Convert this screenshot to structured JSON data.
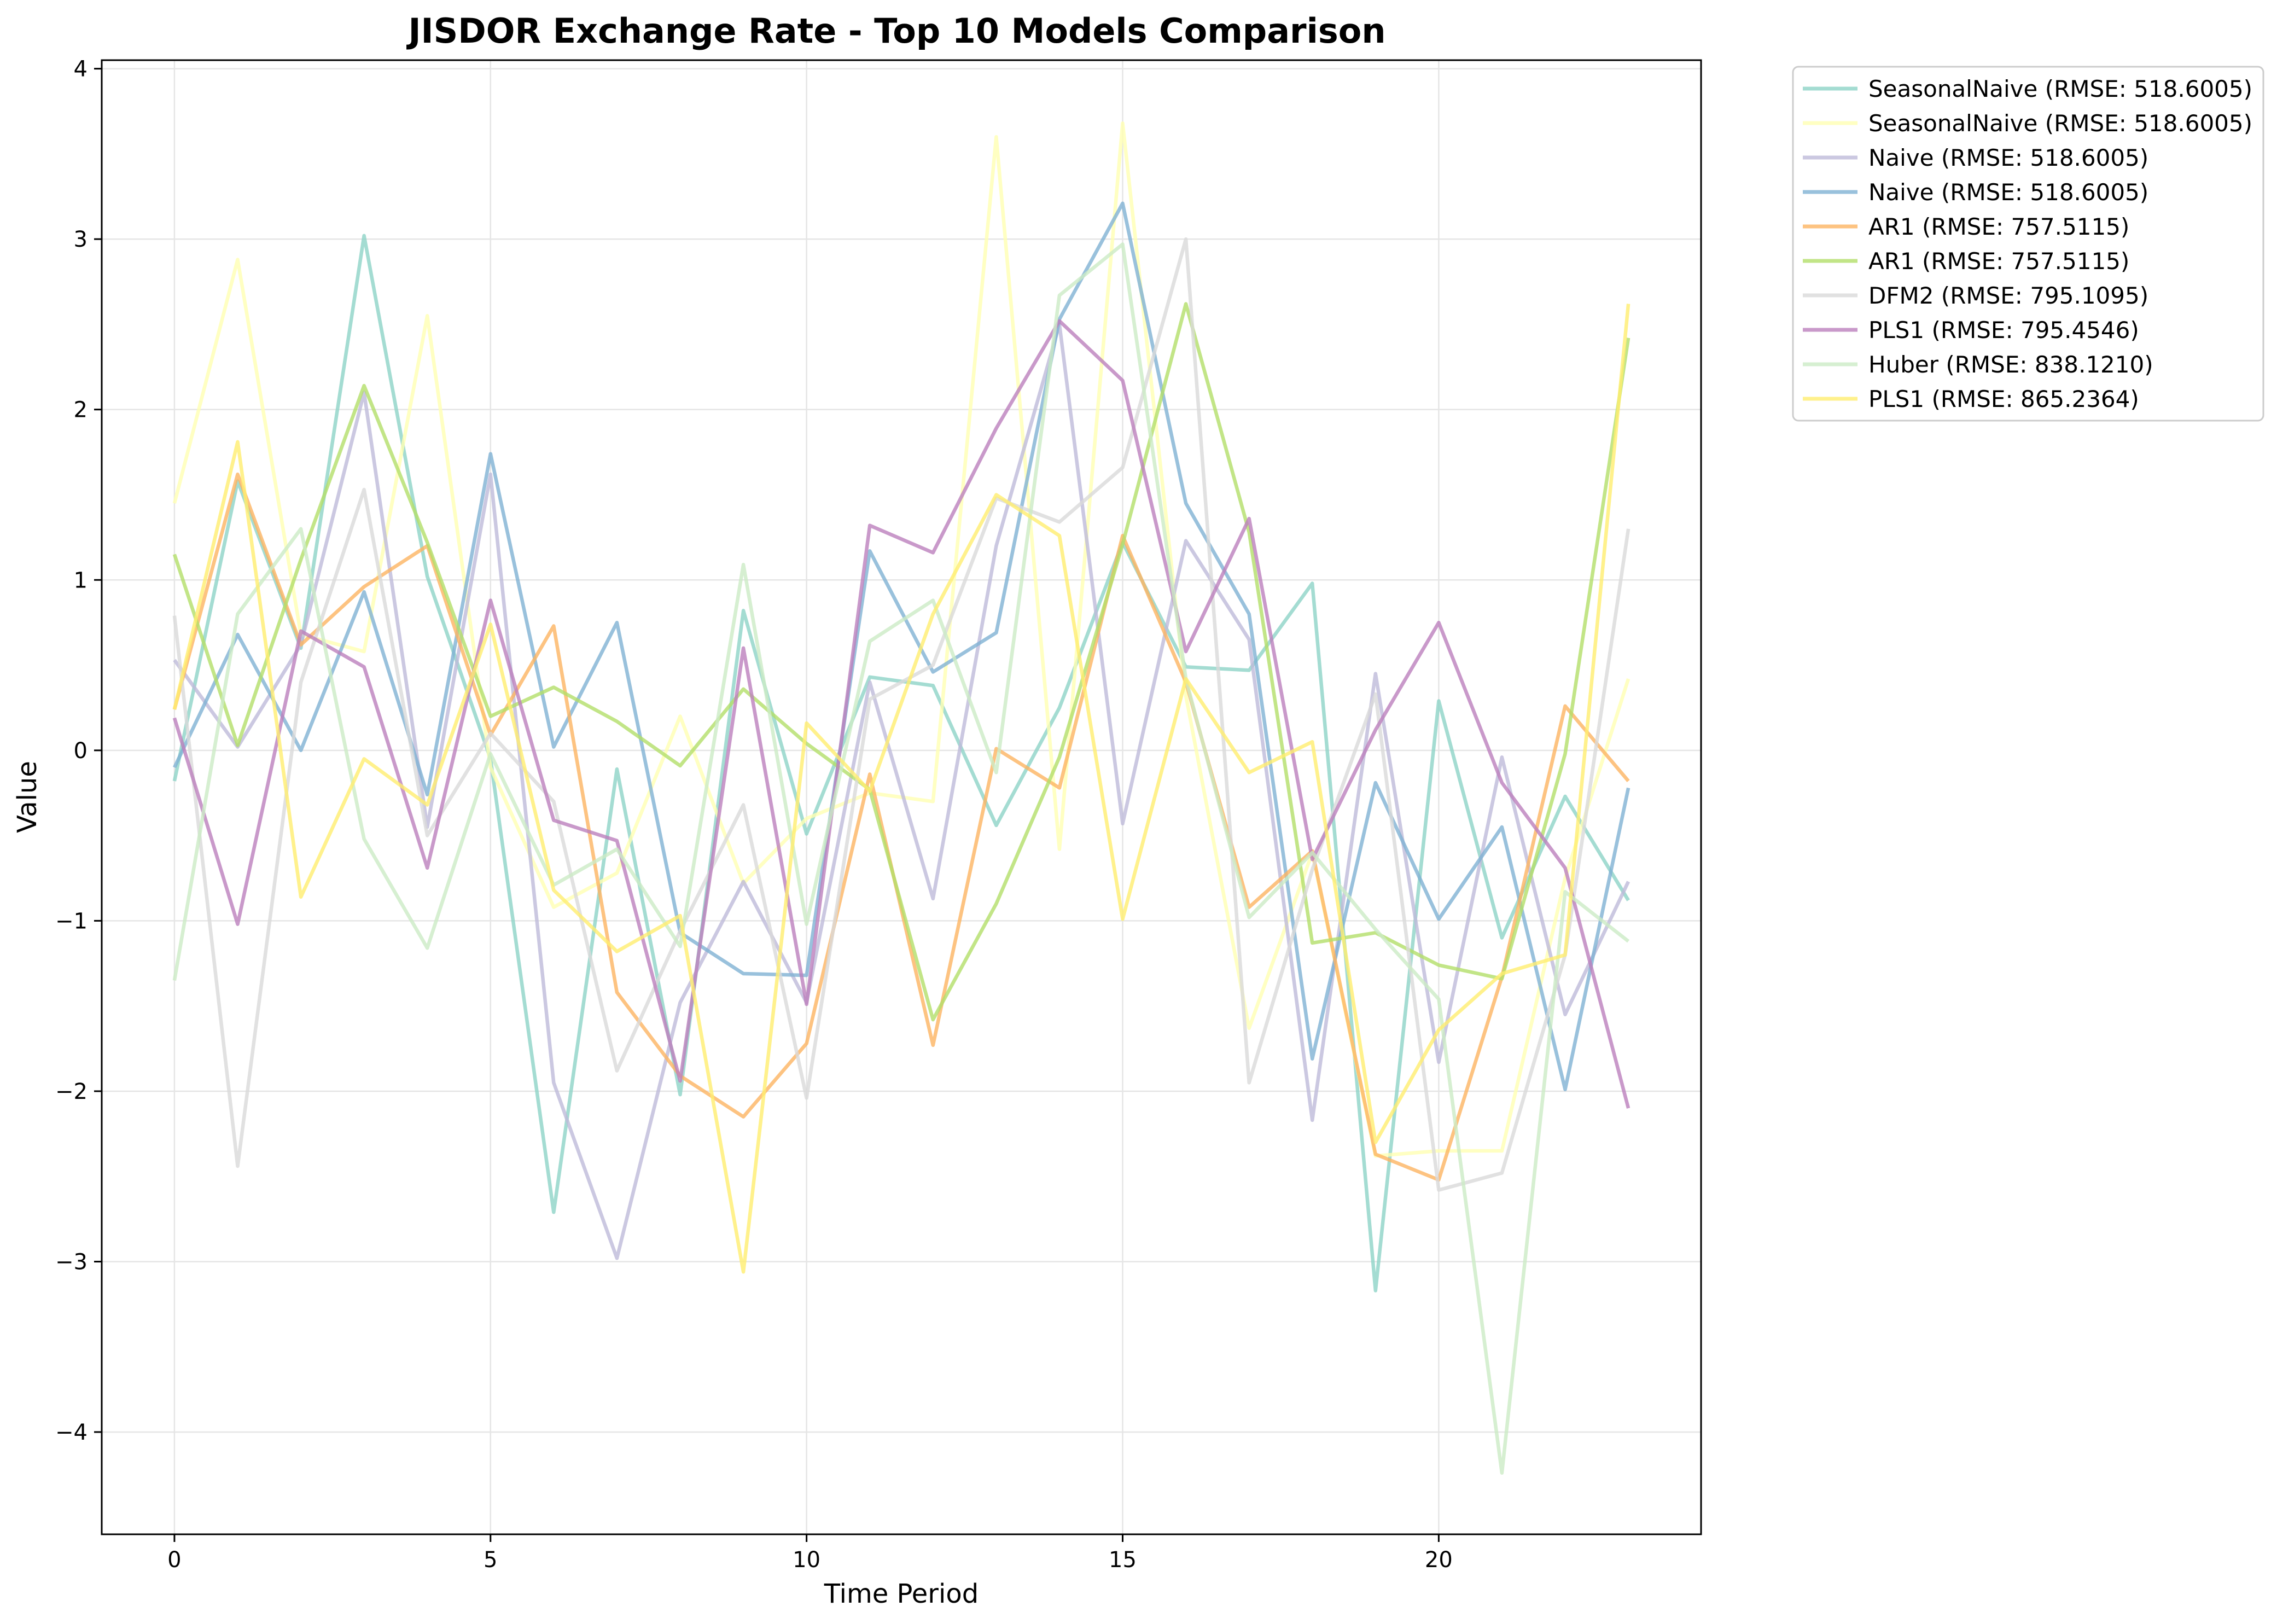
{
  "chart_data": {
    "type": "line",
    "title": "JISDOR Exchange Rate - Top 10 Models Comparison",
    "xlabel": "Time Period",
    "ylabel": "Value",
    "xlim": [
      -1.15,
      24.15
    ],
    "ylim": [
      -4.6,
      4.05
    ],
    "xticks": [
      0,
      5,
      10,
      15,
      20
    ],
    "yticks": [
      -4,
      -3,
      -2,
      -1,
      0,
      1,
      2,
      3,
      4
    ],
    "grid": true,
    "legend_position": "outside-top-right",
    "x": [
      0,
      1,
      2,
      3,
      4,
      5,
      6,
      7,
      8,
      9,
      10,
      11,
      12,
      13,
      14,
      15,
      16,
      17,
      18,
      19,
      20,
      21,
      22,
      23
    ],
    "series": [
      {
        "name": "SeasonalNaive (RMSE: 518.6005)",
        "color": "#8dd3c7",
        "values": [
          -0.18,
          1.58,
          0.6,
          3.02,
          1.02,
          -0.05,
          -2.71,
          -0.11,
          -2.02,
          0.82,
          -0.49,
          0.43,
          0.38,
          -0.44,
          0.25,
          1.22,
          0.49,
          0.47,
          0.98,
          -3.17,
          0.29,
          -1.1,
          -0.27,
          -0.88
        ]
      },
      {
        "name": "SeasonalNaive (RMSE: 518.6005)",
        "color": "#ffffb3",
        "values": [
          1.45,
          2.88,
          0.68,
          0.58,
          2.55,
          -0.1,
          -0.92,
          -0.72,
          0.2,
          -0.78,
          -0.4,
          -0.25,
          -0.3,
          3.6,
          -0.58,
          3.68,
          0.32,
          -1.63,
          -0.6,
          -2.38,
          -2.35,
          -2.35,
          -0.75,
          0.42
        ]
      },
      {
        "name": "Naive (RMSE: 518.6005)",
        "color": "#bebada",
        "values": [
          0.53,
          0.02,
          0.62,
          2.1,
          -0.45,
          1.62,
          -1.95,
          -2.98,
          -1.48,
          -0.77,
          -1.48,
          0.4,
          -0.87,
          1.2,
          2.5,
          -0.43,
          1.23,
          0.65,
          -2.17,
          0.45,
          -1.83,
          -0.04,
          -1.55,
          -0.77
        ]
      },
      {
        "name": "Naive (RMSE: 518.6005)",
        "color": "#80b1d3",
        "values": [
          -0.1,
          0.68,
          0.0,
          0.93,
          -0.26,
          1.74,
          0.02,
          0.75,
          -1.07,
          -1.31,
          -1.32,
          1.17,
          0.46,
          0.69,
          2.53,
          3.21,
          1.45,
          0.8,
          -1.81,
          -0.19,
          -0.99,
          -0.45,
          -1.99,
          -0.22
        ]
      },
      {
        "name": "AR1 (RMSE: 757.5115)",
        "color": "#fdb462",
        "values": [
          0.24,
          1.62,
          0.62,
          0.96,
          1.2,
          0.09,
          0.73,
          -1.42,
          -1.91,
          -2.15,
          -1.72,
          -0.14,
          -1.73,
          0.01,
          -0.22,
          1.26,
          0.4,
          -0.92,
          -0.59,
          -2.37,
          -2.52,
          -1.33,
          0.26,
          -0.18
        ]
      },
      {
        "name": "AR1 (RMSE: 757.5115)",
        "color": "#b3de69",
        "values": [
          1.15,
          0.03,
          1.12,
          2.14,
          1.22,
          0.2,
          0.37,
          0.17,
          -0.09,
          0.36,
          0.04,
          -0.23,
          -1.58,
          -0.9,
          -0.04,
          1.21,
          2.62,
          1.28,
          -1.13,
          -1.07,
          -1.26,
          -1.34,
          -0.02,
          2.42
        ]
      },
      {
        "name": "DFM2 (RMSE: 795.1095)",
        "color": "#d9d9d9",
        "values": [
          0.79,
          -2.44,
          0.4,
          1.53,
          -0.5,
          0.1,
          -0.3,
          -1.88,
          -1.06,
          -0.32,
          -2.04,
          0.3,
          0.5,
          1.48,
          1.34,
          1.66,
          3.0,
          -1.95,
          -0.7,
          0.33,
          -2.58,
          -2.48,
          -1.2,
          1.3
        ]
      },
      {
        "name": "PLS1 (RMSE: 795.4546)",
        "color": "#bc80bd",
        "values": [
          0.19,
          -1.02,
          0.7,
          0.49,
          -0.69,
          0.88,
          -0.41,
          -0.53,
          -1.94,
          0.6,
          -1.49,
          1.32,
          1.16,
          1.89,
          2.52,
          2.17,
          0.58,
          1.36,
          -0.64,
          0.12,
          0.75,
          -0.19,
          -0.69,
          -2.1
        ]
      },
      {
        "name": "Huber (RMSE: 838.1210)",
        "color": "#ccebc5",
        "values": [
          -1.35,
          0.8,
          1.3,
          -0.52,
          -1.16,
          -0.02,
          -0.79,
          -0.58,
          -1.15,
          1.09,
          -1.02,
          0.64,
          0.88,
          -0.13,
          2.67,
          2.97,
          0.42,
          -0.98,
          -0.6,
          -1.05,
          -1.46,
          -4.24,
          -0.83,
          -1.12
        ]
      },
      {
        "name": "PLS1 (RMSE: 865.2364)",
        "color": "#ffed6f",
        "values": [
          0.24,
          1.81,
          -0.86,
          -0.05,
          -0.32,
          0.74,
          -0.82,
          -1.18,
          -0.97,
          -3.06,
          0.16,
          -0.24,
          0.8,
          1.5,
          1.26,
          -0.99,
          0.42,
          -0.13,
          0.05,
          -2.3,
          -1.64,
          -1.31,
          -1.2,
          2.62
        ]
      }
    ]
  }
}
